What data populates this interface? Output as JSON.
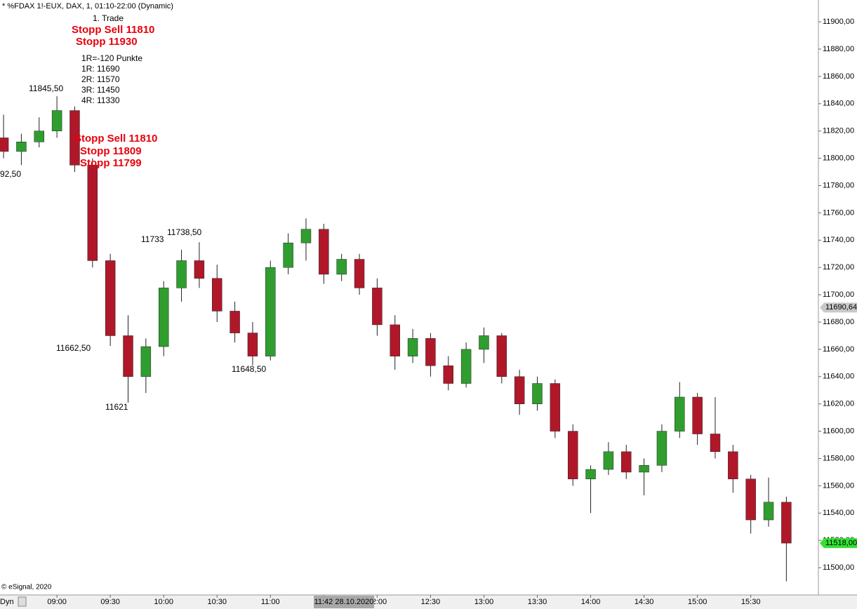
{
  "chart_data": {
    "type": "candlestick",
    "title": "* %FDAX 1!-EUX, DAX, 1, 01:10-22:00 (Dynamic)",
    "x": [
      "08:30",
      "08:40",
      "08:50",
      "09:00",
      "09:10",
      "09:20",
      "09:30",
      "09:40",
      "09:50",
      "10:00",
      "10:10",
      "10:20",
      "10:30",
      "10:40",
      "10:50",
      "11:00",
      "11:10",
      "11:20",
      "11:30",
      "11:40",
      "11:50",
      "12:00",
      "12:10",
      "12:20",
      "12:30",
      "12:40",
      "12:50",
      "13:00",
      "13:10",
      "13:20",
      "13:30",
      "13:40",
      "13:50",
      "14:00",
      "14:10",
      "14:20",
      "14:30",
      "14:40",
      "14:50",
      "15:00",
      "15:10",
      "15:20",
      "15:30",
      "15:40",
      "15:50"
    ],
    "open": [
      11815,
      11805,
      11812,
      11820,
      11835,
      11795,
      11725,
      11670,
      11640,
      11662,
      11705,
      11725,
      11712,
      11688,
      11672,
      11655,
      11720,
      11738,
      11748,
      11715,
      11726,
      11705,
      11678,
      11655,
      11668,
      11648,
      11635,
      11660,
      11670,
      11640,
      11620,
      11635,
      11600,
      11565,
      11572,
      11585,
      11570,
      11575,
      11600,
      11625,
      11598,
      11585,
      11565,
      11535,
      11548
    ],
    "high": [
      11832,
      11818,
      11830,
      11845.5,
      11838,
      11800,
      11730,
      11685,
      11668,
      11710,
      11733,
      11738.5,
      11722,
      11695,
      11680,
      11725,
      11745,
      11756,
      11752,
      11730,
      11730,
      11712,
      11685,
      11675,
      11672,
      11655,
      11665,
      11676,
      11672,
      11645,
      11640,
      11638,
      11605,
      11575,
      11592,
      11590,
      11580,
      11605,
      11636,
      11628,
      11625,
      11590,
      11568,
      11566,
      11552
    ],
    "low": [
      11800,
      11795,
      11808,
      11815,
      11790,
      11720,
      11662.5,
      11621,
      11628,
      11655,
      11695,
      11705,
      11680,
      11665,
      11648.5,
      11652,
      11715,
      11725,
      11708,
      11710,
      11700,
      11670,
      11645,
      11650,
      11640,
      11630,
      11632,
      11650,
      11635,
      11612,
      11615,
      11595,
      11560,
      11540,
      11568,
      11565,
      11553,
      11570,
      11595,
      11590,
      11580,
      11555,
      11525,
      11530,
      11490
    ],
    "close": [
      11805,
      11812,
      11820,
      11835,
      11795,
      11725,
      11670,
      11640,
      11662,
      11705,
      11725,
      11712,
      11688,
      11672,
      11655,
      11720,
      11738,
      11748,
      11715,
      11726,
      11705,
      11678,
      11655,
      11668,
      11648,
      11635,
      11660,
      11670,
      11640,
      11620,
      11635,
      11600,
      11565,
      11572,
      11585,
      11570,
      11575,
      11600,
      11625,
      11598,
      11585,
      11565,
      11535,
      11548,
      11518
    ],
    "up_color": "#2f9e2f",
    "down_color": "#b0182a",
    "xlim": [
      "08:28",
      "16:08"
    ],
    "xticks": [
      "09:00",
      "09:30",
      "10:00",
      "10:30",
      "11:00",
      "11:30",
      "12:00",
      "12:30",
      "13:00",
      "13:30",
      "14:00",
      "14:30",
      "15:00",
      "15:30"
    ],
    "ylim": [
      11480,
      11916
    ],
    "yticks": [
      {
        "value": 11500,
        "label": "11500,00"
      },
      {
        "value": 11520,
        "label": "11520,00"
      },
      {
        "value": 11540,
        "label": "11540,00"
      },
      {
        "value": 11560,
        "label": "11560,00"
      },
      {
        "value": 11580,
        "label": "11580,00"
      },
      {
        "value": 11600,
        "label": "11600,00"
      },
      {
        "value": 11620,
        "label": "11620,00"
      },
      {
        "value": 11640,
        "label": "11640,00"
      },
      {
        "value": 11660,
        "label": "11660,00"
      },
      {
        "value": 11680,
        "label": "11680,00"
      },
      {
        "value": 11700,
        "label": "11700,00"
      },
      {
        "value": 11720,
        "label": "11720,00"
      },
      {
        "value": 11740,
        "label": "11740,00"
      },
      {
        "value": 11760,
        "label": "11760,00"
      },
      {
        "value": 11780,
        "label": "11780,00"
      },
      {
        "value": 11800,
        "label": "11800,00"
      },
      {
        "value": 11820,
        "label": "11820,00"
      },
      {
        "value": 11840,
        "label": "11840,00"
      },
      {
        "value": 11860,
        "label": "11860,00"
      },
      {
        "value": 11880,
        "label": "11880,00"
      },
      {
        "value": 11900,
        "label": "11900,00"
      }
    ],
    "cursor_price": {
      "value": 11690.64,
      "label": "11690,64"
    },
    "last_price": {
      "value": 11518,
      "label": "11518,00"
    },
    "cursor_time": "11:42 28.10.2020",
    "annotations": [
      "1. Trade",
      "Stopp Sell 11810",
      "Stopp 11930",
      "1R=-120 Punkte",
      "1R: 11690",
      "2R: 11570",
      "3R: 11450",
      "4R: 11330",
      "11845,50",
      "Stopp Sell 11810",
      "Stopp 11809",
      "Stopp 11799",
      "92,50",
      "11733",
      "11738,50",
      "11662,50",
      "11621",
      "11648,50"
    ],
    "copyright": "© eSignal, 2020",
    "mode": "Dyn"
  }
}
